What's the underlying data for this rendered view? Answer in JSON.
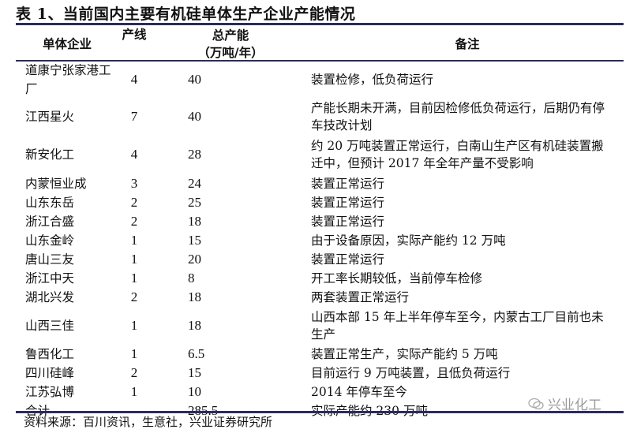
{
  "title": "表 1、当前国内主要有机硅单体生产企业产能情况",
  "headers": {
    "company": "单体企业",
    "lines": "产线",
    "capacity": "总产能",
    "capacity_unit": "（万吨/年）",
    "notes": "备注"
  },
  "rows": [
    {
      "company": "道康宁张家港工厂",
      "lines": "4",
      "capacity": "40",
      "notes": "装置检修，低负荷运行"
    },
    {
      "company": "江西星火",
      "lines": "7",
      "capacity": "40",
      "notes": "产能长期未开满，目前因检修低负荷运行，后期仍有停车技改计划"
    },
    {
      "company": "新安化工",
      "lines": "4",
      "capacity": "28",
      "notes": "约 20 万吨装置正常运行，白南山生产区有机硅装置搬迁中，但预计 2017 年全年产量不受影响"
    },
    {
      "company": "内蒙恒业成",
      "lines": "3",
      "capacity": "24",
      "notes": "装置正常运行"
    },
    {
      "company": "山东东岳",
      "lines": "2",
      "capacity": "25",
      "notes": "装置正常运行"
    },
    {
      "company": "浙江合盛",
      "lines": "2",
      "capacity": "18",
      "notes": "装置正常运行"
    },
    {
      "company": "山东金岭",
      "lines": "1",
      "capacity": "15",
      "notes": "由于设备原因，实际产能约 12 万吨"
    },
    {
      "company": "唐山三友",
      "lines": "1",
      "capacity": "20",
      "notes": "装置正常运行"
    },
    {
      "company": "浙江中天",
      "lines": "1",
      "capacity": "8",
      "notes": "开工率长期较低，当前停车检修"
    },
    {
      "company": "湖北兴发",
      "lines": "2",
      "capacity": "18",
      "notes": "两套装置正常运行"
    },
    {
      "company": "山西三佳",
      "lines": "1",
      "capacity": "18",
      "notes": "山西本部 15 年上半年停车至今，内蒙古工厂目前也未生产"
    },
    {
      "company": "鲁西化工",
      "lines": "1",
      "capacity": "6.5",
      "notes": "装置正常生产，实际产能约 5 万吨"
    },
    {
      "company": "四川硅峰",
      "lines": "2",
      "capacity": "15",
      "notes": "目前运行 9 万吨装置，且低负荷运行"
    },
    {
      "company": "江苏弘博",
      "lines": "1",
      "capacity": "10",
      "notes": "2014 年停车至今"
    },
    {
      "company": "合计",
      "lines": "",
      "capacity": "285.5",
      "notes": "实际产能约 230 万吨"
    }
  ],
  "source": "资料来源：百川资讯，生意社，兴业证券研究所",
  "watermark": "兴业化工",
  "colors": {
    "rule": "#2b2b5e",
    "watermark": "#9a9a9a"
  }
}
